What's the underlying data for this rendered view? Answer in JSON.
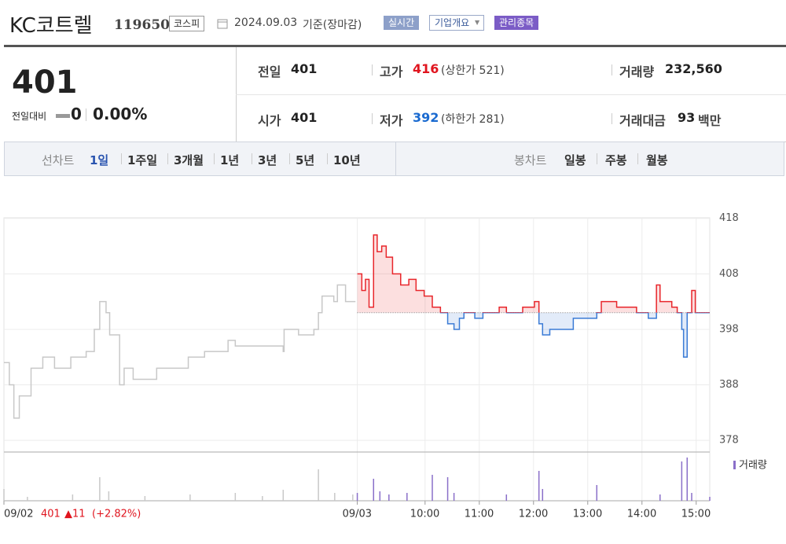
{
  "header": {
    "name": "KC코트렐",
    "code": "119650",
    "market": "코스피",
    "date": "2024.09.03",
    "basis": "기준(장마감)",
    "buttons": [
      "실시간",
      "기업개요",
      "관리종목"
    ]
  },
  "quote": {
    "price": "401",
    "change_label": "전일대비",
    "change": "0",
    "change_pct": "0.00%"
  },
  "stats": [
    [
      {
        "label": "전일",
        "value": "401"
      },
      {
        "label": "고가",
        "value": "416",
        "note": "(상한가 521)"
      },
      {
        "label": "거래량",
        "value": "232,560"
      }
    ],
    [
      {
        "label": "시가",
        "value": "401"
      },
      {
        "label": "저가",
        "value": "392",
        "note": "(하한가 281)"
      },
      {
        "label": "거래대금",
        "value": "93",
        "note": "백만"
      }
    ]
  ],
  "tabs": {
    "line_label": "선차트",
    "line": [
      "1일",
      "1주일",
      "3개월",
      "1년",
      "3년",
      "5년",
      "10년"
    ],
    "candle_label": "봉차트",
    "candle": [
      "일봉",
      "주봉",
      "월봉"
    ]
  },
  "prev_day": {
    "close": "401",
    "change": "▲11",
    "change_pct": "(+2.82%)"
  },
  "chart_data": {
    "type": "line",
    "ylim": [
      375.9,
      418.1
    ],
    "yticks": [
      378,
      388,
      398,
      408,
      418
    ],
    "xlim": [
      -406,
      375
    ],
    "xticks": [
      {
        "value": -406,
        "label": "09/02"
      },
      {
        "value": -15,
        "label": "09/03"
      },
      {
        "value": 60,
        "label": "10:00"
      },
      {
        "value": 120,
        "label": "11:00"
      },
      {
        "value": 180,
        "label": "12:00"
      },
      {
        "value": 240,
        "label": "13:00"
      },
      {
        "value": 300,
        "label": "14:00"
      },
      {
        "value": 360,
        "label": "15:00"
      }
    ],
    "baseline": 401,
    "series": [
      {
        "color": "#c8c8c8",
        "x": [
          -406,
          -400,
          -395,
          -389,
          -376,
          -363,
          -350,
          -332,
          -315,
          -306,
          -300,
          -293,
          -289,
          -278,
          -273,
          -263,
          -237,
          -232,
          -202,
          -184,
          -158,
          -150,
          -97,
          -96,
          -80,
          -63,
          -58,
          -54,
          -41,
          -37,
          -28,
          -17
        ],
        "values": [
          392,
          388,
          382,
          386,
          391,
          393,
          391,
          393,
          394,
          398,
          403,
          401,
          397,
          388,
          391,
          389,
          391,
          391,
          393,
          394,
          396,
          395,
          394,
          398,
          397,
          398,
          401,
          404,
          403,
          406,
          403,
          403
        ]
      },
      {
        "color_up": "#e8262b",
        "color_down": "#3a7bd5",
        "x": [
          -15,
          -10,
          -6,
          -2,
          3,
          7,
          12,
          17,
          24,
          33,
          42,
          50,
          59,
          68,
          77,
          85,
          92,
          98,
          103,
          115,
          124,
          142,
          150,
          168,
          181,
          186,
          190,
          198,
          211,
          224,
          250,
          255,
          272,
          294,
          307,
          316,
          320,
          333,
          339,
          344,
          346,
          350,
          355,
          359,
          375
        ],
        "values": [
          408,
          405,
          407,
          402,
          415,
          412,
          413,
          411,
          408,
          406,
          407,
          405,
          404,
          402,
          401,
          399,
          398,
          400,
          401,
          400,
          401,
          402,
          401,
          402,
          403,
          399,
          397,
          398,
          398,
          400,
          401,
          403,
          402,
          401,
          400,
          406,
          403,
          402,
          401,
          398,
          393,
          401,
          405,
          401,
          401
        ]
      }
    ],
    "volume": {
      "name": "거래량",
      "color_prev": "#c8c8c8",
      "color": "#8a6fc9",
      "x": [
        -406,
        -380,
        -330,
        -300,
        -290,
        -250,
        -200,
        -150,
        -120,
        -97,
        -58,
        -40,
        -20,
        -15,
        3,
        10,
        20,
        40,
        68,
        85,
        92,
        150,
        186,
        190,
        250,
        320,
        344,
        350,
        355,
        375
      ],
      "values": [
        15,
        5,
        8,
        30,
        12,
        6,
        8,
        10,
        6,
        14,
        40,
        10,
        8,
        10,
        28,
        12,
        8,
        10,
        33,
        30,
        10,
        8,
        38,
        15,
        20,
        8,
        50,
        55,
        10,
        5
      ]
    }
  }
}
